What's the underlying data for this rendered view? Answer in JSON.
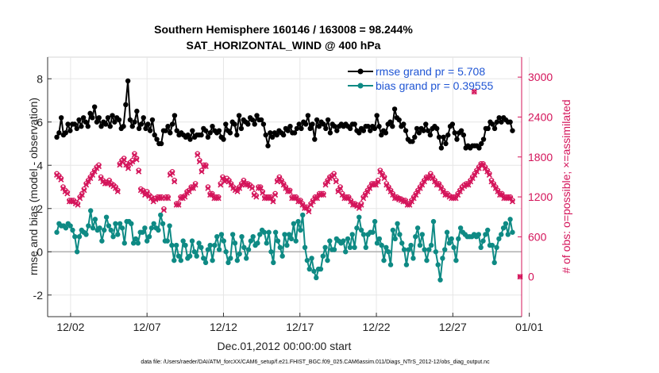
{
  "chart_data": {
    "type": "line",
    "title_line1": "Southern Hemisphere 160146 / 163008 = 98.244%",
    "title_line2": "SAT_HORIZONTAL_WIND @ 400 hPa",
    "xlabel": "Dec.01,2012 00:00:00 start",
    "ylabel_left": "rmse and bias (model - observation)",
    "ylabel_right": "# of obs: o=possible; ×=assimilated",
    "footer": "data file: /Users/raeder/DAI/ATM_forcXX/CAM6_setup/f.e21.FHIST_BGC.f09_025.CAM6assim.011/Diags_NTrS_2012-12/obs_diag_output.nc",
    "xlim": [
      0.5,
      31.5
    ],
    "ylim_left": [
      -3,
      9
    ],
    "ylim_right": [
      -600,
      3300
    ],
    "x_ticks": [
      {
        "value": 2,
        "label": "12/02"
      },
      {
        "value": 7,
        "label": "12/07"
      },
      {
        "value": 12,
        "label": "12/12"
      },
      {
        "value": 17,
        "label": "12/17"
      },
      {
        "value": 22,
        "label": "12/22"
      },
      {
        "value": 27,
        "label": "12/27"
      },
      {
        "value": 32,
        "label": "01/01"
      }
    ],
    "y_ticks_left": [
      -2,
      0,
      2,
      4,
      6,
      8
    ],
    "y_ticks_right": [
      0,
      600,
      1200,
      1800,
      2400,
      3000
    ],
    "colors": {
      "rmse": "#000000",
      "bias": "#0e8a84",
      "obs": "#d4145a",
      "legend_text": "#1f55d4",
      "zero_line": "#b0b0b0"
    },
    "series": [
      {
        "name": "rmse grand pr = 5.708",
        "axis": "left",
        "marker": "circle",
        "values": [
          5.3,
          5.5,
          6.2,
          5.4,
          5.5,
          5.9,
          5.6,
          5.9,
          5.9,
          5.7,
          6.1,
          5.8,
          6.2,
          6.0,
          5.8,
          6.4,
          6.2,
          6.7,
          6.0,
          6.2,
          5.8,
          6.0,
          5.9,
          6.2,
          5.8,
          6.3,
          6.0,
          6.2,
          6.1,
          5.7,
          5.8,
          6.8,
          7.9,
          6.1,
          5.8,
          6.0,
          6.5,
          5.7,
          5.9,
          6.2,
          5.7,
          5.9,
          5.6,
          6.1,
          5.4,
          5.2,
          5.0,
          5.0,
          5.6,
          5.6,
          5.8,
          5.5,
          5.9,
          6.3,
          5.6,
          5.4,
          5.5,
          5.4,
          5.3,
          5.4,
          5.2,
          5.6,
          5.3,
          5.4,
          5.4,
          5.4,
          5.7,
          5.6,
          5.3,
          5.5,
          5.8,
          5.6,
          5.5,
          5.6,
          5.3,
          5.2,
          5.9,
          5.6,
          5.5,
          6.0,
          5.9,
          5.4,
          6.3,
          5.7,
          6.1,
          6.0,
          5.9,
          6.2,
          6.1,
          5.9,
          6.3,
          6.1,
          6.1,
          5.9,
          5.4,
          4.9,
          5.5,
          5.3,
          5.5,
          5.4,
          5.6,
          5.5,
          5.4,
          5.7,
          5.6,
          5.8,
          5.5,
          5.5,
          5.7,
          5.9,
          5.7,
          6.0,
          5.9,
          6.3,
          5.7,
          5.9,
          5.2,
          6.1,
          5.8,
          6.0,
          5.9,
          5.7,
          6.1,
          5.5,
          5.9,
          5.8,
          5.6,
          5.8,
          5.9,
          5.8,
          5.9,
          5.8,
          5.7,
          5.9,
          5.9,
          5.6,
          5.5,
          5.7,
          5.6,
          5.8,
          5.8,
          5.6,
          5.8,
          5.7,
          6.3,
          5.8,
          5.4,
          5.6,
          5.5,
          5.9,
          6.0,
          5.8,
          6.6,
          6.2,
          6.1,
          5.8,
          5.9,
          5.6,
          5.2,
          5.1,
          5.1,
          5.3,
          5.7,
          5.5,
          5.7,
          5.6,
          5.9,
          5.6,
          5.4,
          5.7,
          5.8,
          5.7,
          5.3,
          4.8,
          5.3,
          5.0,
          5.4,
          5.8,
          5.9,
          5.5,
          5.2,
          5.5,
          5.6,
          5.4,
          4.8,
          4.9,
          4.8,
          4.9,
          4.9,
          4.9,
          4.8,
          5.0,
          5.2,
          5.7,
          5.7,
          6.0,
          5.9,
          5.7,
          6.0,
          6.2,
          6.0,
          6.2,
          6.1,
          6.0,
          6.0,
          5.6
        ]
      },
      {
        "name": "bias grand pr = 0.39555",
        "axis": "left",
        "marker": "circle",
        "values": [
          0.9,
          1.3,
          1.2,
          1.2,
          1.1,
          1.3,
          1.2,
          1.0,
          0.7,
          0.0,
          0.7,
          1.0,
          0.9,
          0.8,
          1.2,
          1.9,
          1.1,
          1.5,
          1.0,
          1.1,
          0.5,
          1.0,
          1.6,
          1.2,
          1.0,
          0.7,
          1.3,
          0.8,
          1.3,
          1.1,
          0.4,
          1.4,
          1.4,
          1.3,
          0.4,
          0.6,
          0.4,
          0.9,
          0.9,
          1.1,
          0.5,
          0.7,
          1.1,
          1.3,
          1.1,
          1.0,
          1.7,
          1.3,
          0.5,
          0.5,
          1.2,
          0.3,
          -0.4,
          0.3,
          -0.2,
          -0.4,
          0.5,
          0.3,
          -0.3,
          -0.2,
          0.5,
          0.0,
          -0.2,
          0.4,
          0.2,
          -0.3,
          -0.5,
          0.1,
          0.3,
          -0.4,
          0.3,
          0.7,
          0.1,
          0.8,
          0.5,
          0.0,
          -0.5,
          -0.3,
          0.8,
          0.4,
          -0.4,
          -0.1,
          0.7,
          0.2,
          -0.3,
          0.1,
          0.5,
          0.7,
          0.3,
          0.4,
          0.8,
          1.0,
          0.9,
          0.4,
          0.9,
          0.0,
          -0.5,
          0.9,
          0.5,
          0.2,
          -0.2,
          0.8,
          0.3,
          0.8,
          0.6,
          1.3,
          0.5,
          1.4,
          1.0,
          1.7,
          0.2,
          -0.4,
          -0.8,
          -0.3,
          -0.9,
          -1.2,
          -0.8,
          -0.8,
          -0.2,
          0.2,
          -0.4,
          0.5,
          0.1,
          0.1,
          0.6,
          0.5,
          0.4,
          0.5,
          0.0,
          0.6,
          0.2,
          0.8,
          0.2,
          1.1,
          1.6,
          1.0,
          0.8,
          0.2,
          0.8,
          0.9,
          0.9,
          1.4,
          0.4,
          0.6,
          0.3,
          -0.4,
          0.2,
          0.0,
          -0.6,
          1.0,
          0.6,
          1.3,
          0.8,
          0.4,
          0.1,
          -0.6,
          0.1,
          0.3,
          -0.3,
          0.7,
          1.1,
          0.3,
          0.8,
          0.1,
          -0.4,
          0.1,
          0.3,
          1.4,
          0.0,
          -0.6,
          -1.3,
          -0.3,
          0.1,
          0.9,
          0.4,
          0.6,
          0.2,
          -0.4,
          0.6,
          1.1,
          0.9,
          0.8,
          0.7,
          0.7,
          0.7,
          0.8,
          0.7,
          0.8,
          0.2,
          0.5,
          0.8,
          1.0,
          0.3,
          0.3,
          -0.5,
          0.2,
          0.6,
          0.8,
          1.1,
          1.3,
          0.8,
          1.5,
          0.9
        ]
      },
      {
        "name": "obs possible",
        "axis": "right",
        "marker": "o",
        "values": [
          1550,
          1520,
          1480,
          1350,
          1300,
          1270,
          1150,
          1150,
          1150,
          1120,
          1100,
          1200,
          1250,
          1320,
          1400,
          1450,
          1500,
          1550,
          1600,
          1650,
          1680,
          1500,
          1450,
          1420,
          1420,
          1450,
          1400,
          1380,
          1350,
          1300,
          1700,
          1750,
          1780,
          1700,
          1650,
          1720,
          1750,
          1850,
          1780,
          1600,
          1320,
          1300,
          1250,
          1280,
          1230,
          1200,
          1150,
          1180,
          1200,
          1200,
          1200,
          1020,
          1200,
          1200,
          1550,
          1580,
          1450,
          1100,
          1100,
          1200,
          1200,
          1220,
          1280,
          1300,
          1350,
          1350,
          1400,
          1850,
          1750,
          1600,
          1680,
          1680,
          1350,
          1250,
          1250,
          1200,
          1200,
          1200,
          1400,
          1500,
          1450,
          1480,
          1450,
          1400,
          1350,
          1320,
          1300,
          1350,
          1400,
          1450,
          1400,
          1400,
          1380,
          1350,
          1250,
          1220,
          1350,
          1350,
          1280,
          1200,
          1200,
          1200,
          1200,
          1150,
          1250,
          1450,
          1500,
          1450,
          1400,
          1350,
          1300,
          1300,
          1200,
          1200,
          1200,
          1150,
          1150,
          1100,
          1050,
          1050,
          1000,
          1100,
          1150,
          1200,
          1200,
          1250,
          1250,
          1250,
          1400,
          1450,
          1500,
          1520,
          1550,
          1450,
          1300,
          1350,
          1250,
          1200,
          1200,
          1200,
          1150,
          1100,
          1100,
          1080,
          1050,
          1100,
          1200,
          1250,
          1300,
          1350,
          1400,
          1400,
          1400,
          1450,
          1600,
          1550,
          1500,
          1400,
          1350,
          1300,
          1250,
          1200,
          1200,
          1180,
          1170,
          1150,
          1150,
          1100,
          1100,
          1150,
          1200,
          1250,
          1300,
          1350,
          1400,
          1450,
          1500,
          1500,
          1550,
          1500,
          1450,
          1400,
          1400,
          1350,
          1300,
          1250,
          1250,
          1220,
          1200,
          1200,
          1200,
          1250,
          1300,
          1350,
          1380,
          1400,
          1400,
          1450,
          1500,
          1550,
          1600,
          1650,
          1700,
          1700,
          1650,
          1600,
          1550,
          1450,
          1400,
          1350,
          1300,
          1250,
          1250,
          1200,
          1200,
          1200,
          1200,
          1150
        ]
      },
      {
        "name": "obs assimilated",
        "axis": "right",
        "marker": "x",
        "values": [
          1530,
          1500,
          1460,
          1330,
          1280,
          1250,
          1130,
          1130,
          1130,
          1100,
          1080,
          1180,
          1230,
          1300,
          1380,
          1430,
          1480,
          1530,
          1580,
          1630,
          1660,
          1480,
          1430,
          1400,
          1400,
          1430,
          1380,
          1360,
          1330,
          1280,
          1680,
          1730,
          1760,
          1680,
          1630,
          1700,
          1730,
          1830,
          1760,
          1580,
          1300,
          1280,
          1230,
          1260,
          1210,
          1180,
          1130,
          1160,
          1180,
          1180,
          1180,
          1000,
          1180,
          1180,
          1530,
          1560,
          1430,
          1080,
          1080,
          1180,
          1180,
          1200,
          1260,
          1280,
          1330,
          1330,
          1380,
          1830,
          1730,
          1580,
          1660,
          1660,
          1330,
          1230,
          1230,
          1180,
          1180,
          1180,
          1380,
          1480,
          1430,
          1460,
          1430,
          1380,
          1330,
          1300,
          1280,
          1330,
          1380,
          1430,
          1380,
          1380,
          1360,
          1330,
          1230,
          1200,
          1330,
          1330,
          1260,
          1180,
          1180,
          1180,
          1180,
          1130,
          1230,
          1430,
          1480,
          1430,
          1380,
          1330,
          1280,
          1280,
          1180,
          1180,
          1180,
          1130,
          1130,
          1080,
          1030,
          1030,
          980,
          1080,
          1130,
          1180,
          1180,
          1230,
          1230,
          1230,
          1380,
          1430,
          1480,
          1500,
          1530,
          1430,
          1280,
          1330,
          1230,
          1180,
          1180,
          1180,
          1130,
          1080,
          1080,
          1060,
          1030,
          1080,
          1180,
          1230,
          1280,
          1330,
          1380,
          1380,
          1380,
          1430,
          1580,
          1530,
          1480,
          1380,
          1330,
          1280,
          1230,
          1180,
          1180,
          1160,
          1150,
          1130,
          1130,
          1080,
          1080,
          1130,
          1180,
          1230,
          1280,
          1330,
          1380,
          1430,
          1480,
          1480,
          1530,
          1480,
          1430,
          1380,
          1380,
          1330,
          1280,
          1230,
          1230,
          1200,
          1180,
          1180,
          1180,
          1230,
          1280,
          1330,
          1360,
          1380,
          1380,
          1430,
          1480,
          1530,
          1580,
          1630,
          1680,
          1680,
          1630,
          1580,
          1530,
          1430,
          1380,
          1330,
          1280,
          1230,
          1230,
          1180,
          1180,
          1180,
          1180,
          1130
        ]
      }
    ],
    "outliers": [
      {
        "x": 28.4,
        "value": 2780,
        "marker": "x"
      },
      {
        "x": 31.4,
        "value": 0,
        "marker": "x"
      }
    ]
  }
}
